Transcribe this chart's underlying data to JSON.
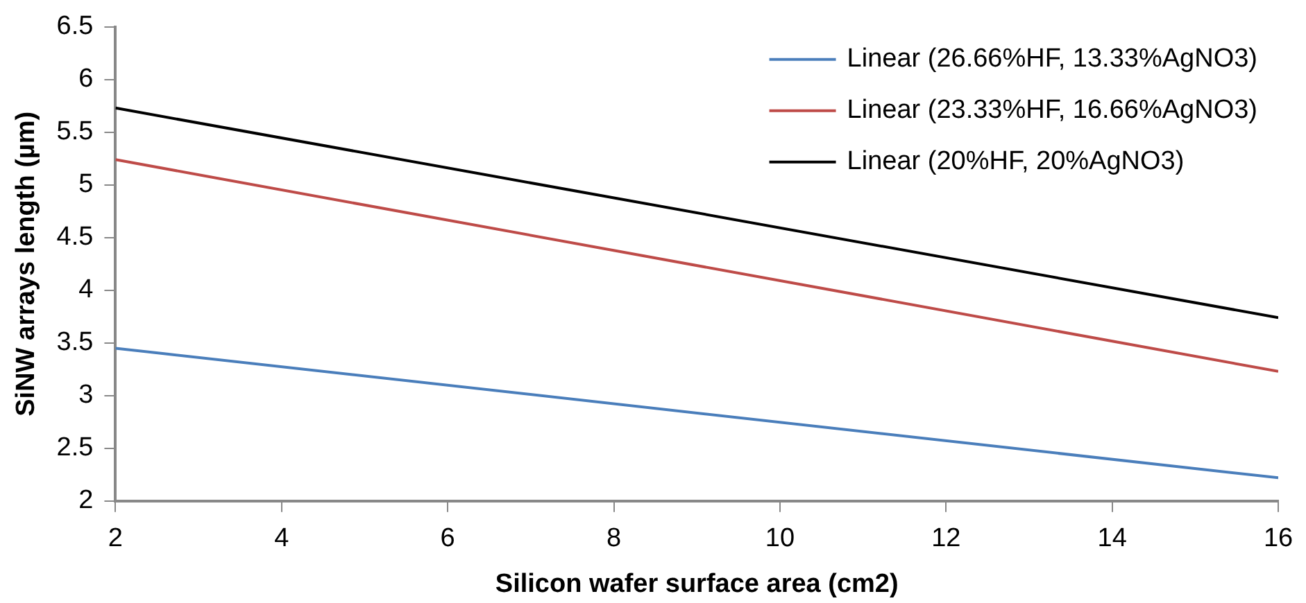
{
  "chart_data": {
    "type": "line",
    "xlabel": "Silicon wafer surface area (cm2)",
    "ylabel": "SiNW arrays length (µm)",
    "x": [
      2,
      16
    ],
    "series": [
      {
        "name": "Linear (26.66%HF, 13.33%AgNO3)",
        "color": "#4a7ebb",
        "values": [
          3.45,
          2.22
        ]
      },
      {
        "name": "Linear (23.33%HF, 16.66%AgNO3)",
        "color": "#be4b48",
        "values": [
          5.24,
          3.23
        ]
      },
      {
        "name": "Linear (20%HF, 20%AgNO3)",
        "color": "#000000",
        "values": [
          5.73,
          3.74
        ]
      }
    ],
    "xlim": [
      2,
      16
    ],
    "xticks": [
      2,
      4,
      6,
      8,
      10,
      12,
      14,
      16
    ],
    "ylim": [
      2,
      6.5
    ],
    "yticks": [
      2,
      2.5,
      3,
      3.5,
      4,
      4.5,
      5,
      5.5,
      6,
      6.5
    ],
    "grid": false,
    "legend": "top right",
    "marker": "none",
    "line_style": "solid"
  }
}
